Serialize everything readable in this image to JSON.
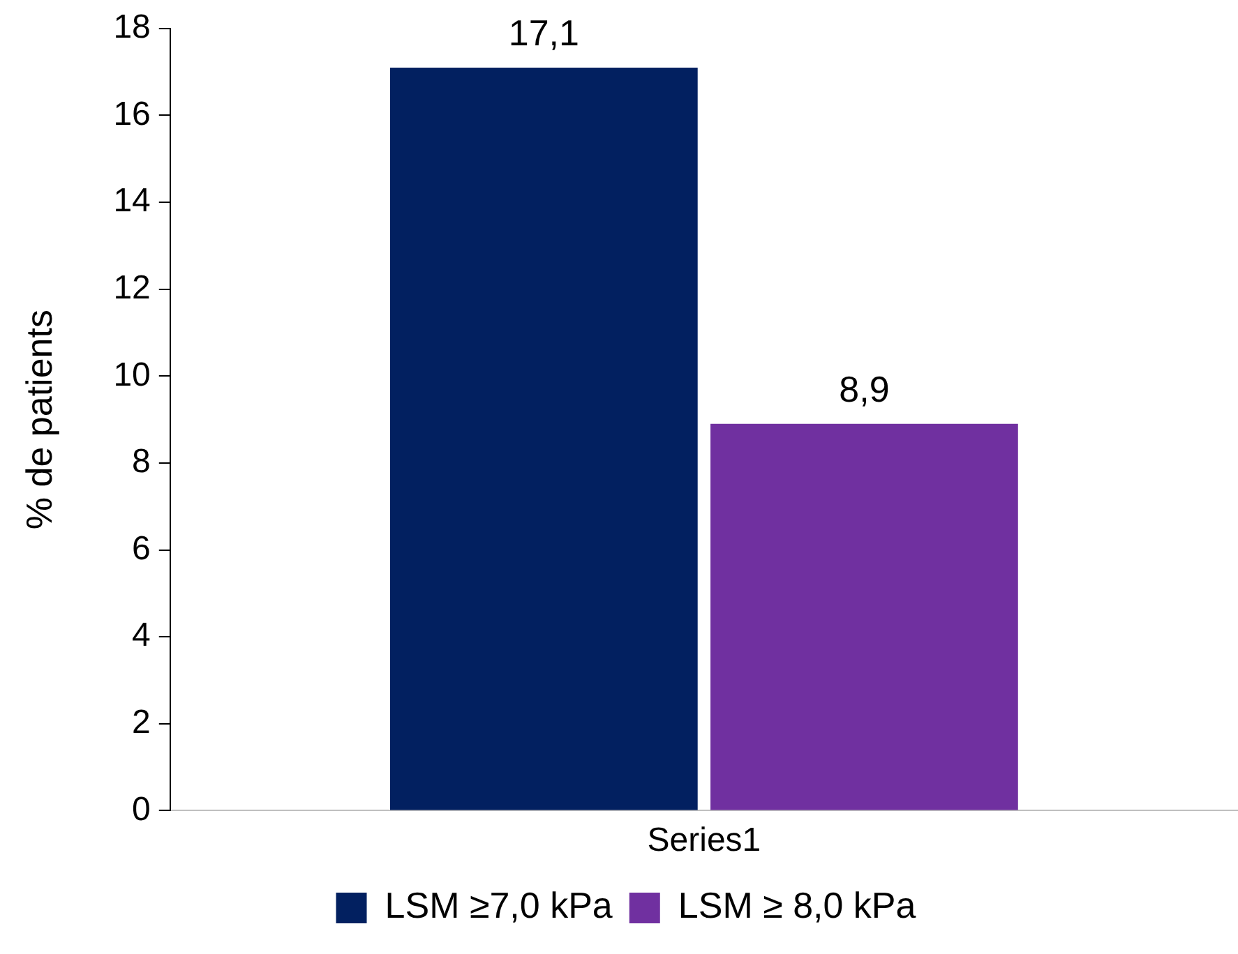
{
  "chart_data": {
    "type": "bar",
    "ylabel": "% de patients",
    "categories": [
      "Series1"
    ],
    "series": [
      {
        "name": "LSM ≥7,0 kPa",
        "color": "#022060",
        "values": [
          17.1
        ],
        "value_labels": [
          "17,1"
        ]
      },
      {
        "name": "LSM ≥ 8,0 kPa",
        "color": "#7030a0",
        "values": [
          8.9
        ],
        "value_labels": [
          "8,9"
        ]
      }
    ],
    "ylim": [
      0,
      18
    ],
    "yticks": [
      0,
      2,
      4,
      6,
      8,
      10,
      12,
      14,
      16,
      18
    ],
    "grid": false,
    "legend": "bottom"
  }
}
